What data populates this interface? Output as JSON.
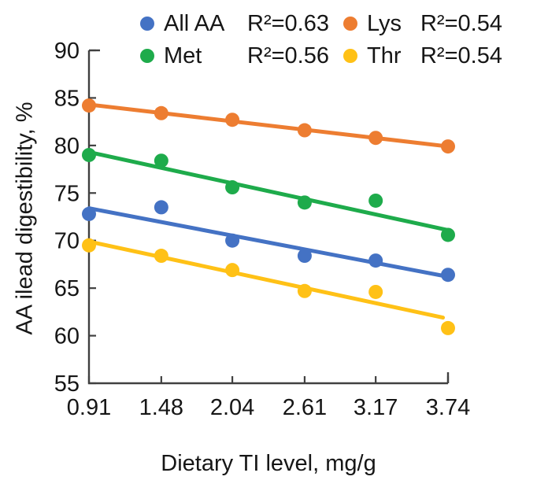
{
  "chart_data": {
    "type": "scatter",
    "title": "",
    "xlabel": "Dietary TI level, mg/g",
    "ylabel": "AA ilead digestibility, %",
    "x": [
      0.91,
      1.48,
      2.04,
      2.61,
      3.17,
      3.74
    ],
    "x_tick_labels": [
      "0.91",
      "1.48",
      "2.04",
      "2.61",
      "3.17",
      "3.74"
    ],
    "y_ticks": [
      55,
      60,
      65,
      70,
      75,
      80,
      85,
      90
    ],
    "ylim": [
      55,
      90
    ],
    "xlim": [
      0.91,
      3.74
    ],
    "grid": "off",
    "legend_position": "top",
    "marker_radius_px": 9,
    "axis_color": "#404040",
    "text_color": "#161616",
    "series": [
      {
        "name": "All AA",
        "r2_label": "R²=0.63",
        "color": "#4472C4",
        "values": [
          72.8,
          73.5,
          70.0,
          68.4,
          67.9,
          66.4
        ],
        "trend": {
          "x1": 0.91,
          "y1": 73.4,
          "x2": 3.74,
          "y2": 66.2
        }
      },
      {
        "name": "Lys",
        "r2_label": "R²=0.54",
        "color": "#ED7D31",
        "values": [
          84.2,
          83.4,
          82.7,
          81.6,
          80.8,
          79.9
        ],
        "trend": {
          "x1": 0.91,
          "y1": 84.3,
          "x2": 3.74,
          "y2": 79.9
        }
      },
      {
        "name": "Met",
        "r2_label": "R²=0.56",
        "color": "#1EAB4B",
        "values": [
          79.0,
          78.4,
          75.6,
          74.0,
          74.2,
          70.6
        ],
        "trend": {
          "x1": 0.91,
          "y1": 79.3,
          "x2": 3.74,
          "y2": 71.1
        }
      },
      {
        "name": "Thr",
        "r2_label": "R²=0.54",
        "color": "#FFC116",
        "values": [
          69.5,
          68.4,
          66.9,
          64.7,
          64.6,
          60.8
        ],
        "trend": {
          "x1": 0.91,
          "y1": 69.9,
          "x2": 3.7,
          "y2": 61.9
        }
      }
    ]
  }
}
